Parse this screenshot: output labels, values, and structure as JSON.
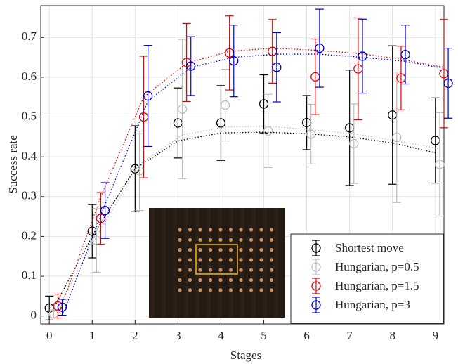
{
  "chart_data": {
    "type": "errorbar",
    "xlabel": "Stages",
    "ylabel": "Success rate",
    "xlim": [
      -0.2,
      9.2
    ],
    "ylim": [
      -0.02,
      0.78
    ],
    "xticks": [
      0,
      1,
      2,
      3,
      4,
      5,
      6,
      7,
      8,
      9
    ],
    "yticks": [
      0,
      0.1,
      0.2,
      0.3,
      0.4,
      0.5,
      0.6,
      0.7
    ],
    "grid": true,
    "legend": "lower right",
    "series": [
      {
        "name": "Shortest move",
        "color": "#000000",
        "x": [
          0,
          1,
          2,
          3,
          4,
          5,
          6,
          7,
          8,
          9
        ],
        "values": [
          0.02,
          0.213,
          0.37,
          0.485,
          0.485,
          0.533,
          0.486,
          0.473,
          0.505,
          0.441
        ],
        "errors": [
          0.03,
          0.067,
          0.108,
          0.088,
          0.094,
          0.073,
          0.068,
          0.145,
          0.174,
          0.107
        ],
        "fit": [
          0.0,
          0.2,
          0.37,
          0.44,
          0.46,
          0.462,
          0.458,
          0.45,
          0.435,
          0.41
        ]
      },
      {
        "name": "Hungarian, p=0.5",
        "color": "#bdbdbd",
        "x": [
          0.1,
          1.1,
          2.1,
          3.1,
          4.1,
          5.1,
          6.1,
          7.1,
          8.1,
          9.1
        ],
        "values": [
          0.005,
          0.19,
          0.365,
          0.52,
          0.53,
          0.465,
          0.457,
          0.433,
          0.449,
          0.381
        ],
        "errors": [
          0.01,
          0.08,
          0.1,
          0.175,
          0.09,
          0.092,
          0.075,
          0.1,
          0.164,
          0.13
        ],
        "fit": [
          0.0,
          0.2,
          0.38,
          0.455,
          0.475,
          0.477,
          0.468,
          0.458,
          0.44,
          0.42
        ]
      },
      {
        "name": "Hungarian, p=1.5",
        "color": "#e00000",
        "x": [
          0.2,
          1.2,
          2.2,
          3.2,
          4.2,
          5.2,
          6.2,
          7.2,
          8.2,
          9.2
        ],
        "values": [
          0.025,
          0.245,
          0.5,
          0.637,
          0.661,
          0.665,
          0.601,
          0.621,
          0.598,
          0.609
        ],
        "errors": [
          0.03,
          0.065,
          0.153,
          0.098,
          0.093,
          0.08,
          0.095,
          0.128,
          0.08,
          0.136
        ],
        "fit": [
          0.0,
          0.3,
          0.55,
          0.635,
          0.665,
          0.673,
          0.668,
          0.66,
          0.645,
          0.625
        ]
      },
      {
        "name": "Hungarian, p=3",
        "color": "#0000cc",
        "x": [
          0.3,
          1.3,
          2.3,
          3.3,
          4.3,
          5.3,
          6.3,
          7.3,
          8.3,
          9.3
        ],
        "values": [
          0.022,
          0.265,
          0.553,
          0.628,
          0.641,
          0.625,
          0.673,
          0.653,
          0.657,
          0.585
        ],
        "errors": [
          0.02,
          0.07,
          0.127,
          0.074,
          0.09,
          0.087,
          0.098,
          0.093,
          0.074,
          0.088
        ],
        "fit": [
          0.0,
          0.28,
          0.54,
          0.625,
          0.65,
          0.658,
          0.658,
          0.65,
          0.64,
          0.62
        ]
      }
    ]
  }
}
